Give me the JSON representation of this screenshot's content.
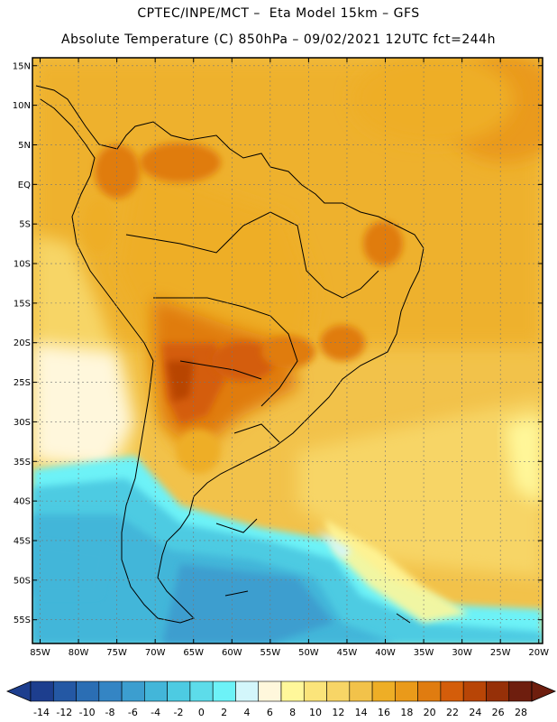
{
  "header": {
    "line1": "CPTEC/INPE/MCT –  Eta Model 15km – GFS",
    "line2": "Absolute Temperature (C) 850hPa – 09/02/2021 12UTC fct=244h"
  },
  "map": {
    "lon_range": [
      -86,
      -19.5
    ],
    "lat_range": [
      -58,
      16
    ],
    "lat_ticks": [
      {
        "v": 15,
        "label": "15N"
      },
      {
        "v": 10,
        "label": "10N"
      },
      {
        "v": 5,
        "label": "5N"
      },
      {
        "v": 0,
        "label": "EQ"
      },
      {
        "v": -5,
        "label": "5S"
      },
      {
        "v": -10,
        "label": "10S"
      },
      {
        "v": -15,
        "label": "15S"
      },
      {
        "v": -20,
        "label": "20S"
      },
      {
        "v": -25,
        "label": "25S"
      },
      {
        "v": -30,
        "label": "30S"
      },
      {
        "v": -35,
        "label": "35S"
      },
      {
        "v": -40,
        "label": "40S"
      },
      {
        "v": -45,
        "label": "45S"
      },
      {
        "v": -50,
        "label": "50S"
      },
      {
        "v": -55,
        "label": "55S"
      }
    ],
    "lon_ticks": [
      {
        "v": -85,
        "label": "85W"
      },
      {
        "v": -80,
        "label": "80W"
      },
      {
        "v": -75,
        "label": "75W"
      },
      {
        "v": -70,
        "label": "70W"
      },
      {
        "v": -65,
        "label": "65W"
      },
      {
        "v": -60,
        "label": "60W"
      },
      {
        "v": -55,
        "label": "55W"
      },
      {
        "v": -50,
        "label": "50W"
      },
      {
        "v": -45,
        "label": "45W"
      },
      {
        "v": -40,
        "label": "40W"
      },
      {
        "v": -35,
        "label": "35W"
      },
      {
        "v": -30,
        "label": "30W"
      },
      {
        "v": -25,
        "label": "25W"
      },
      {
        "v": -20,
        "label": "20W"
      }
    ],
    "gridlines": true
  },
  "colorbar": {
    "labels": [
      "-14",
      "-12",
      "-10",
      "-8",
      "-6",
      "-4",
      "-2",
      "0",
      "2",
      "4",
      "6",
      "8",
      "10",
      "12",
      "14",
      "16",
      "18",
      "20",
      "22",
      "24",
      "26",
      "28"
    ],
    "colors": [
      "#1d3e8e",
      "#2458a4",
      "#2b6eb4",
      "#3485c4",
      "#3c9ecf",
      "#43b6d9",
      "#4dcbe2",
      "#5ddcea",
      "#6df2f7",
      "#d3f6fb",
      "#fff7dc",
      "#fff79a",
      "#fbe47a",
      "#f7d566",
      "#f2c24a",
      "#eeae26",
      "#ea9a1a",
      "#e07c10",
      "#d45d0a",
      "#b84506",
      "#963008",
      "#6e1e0e"
    ]
  }
}
